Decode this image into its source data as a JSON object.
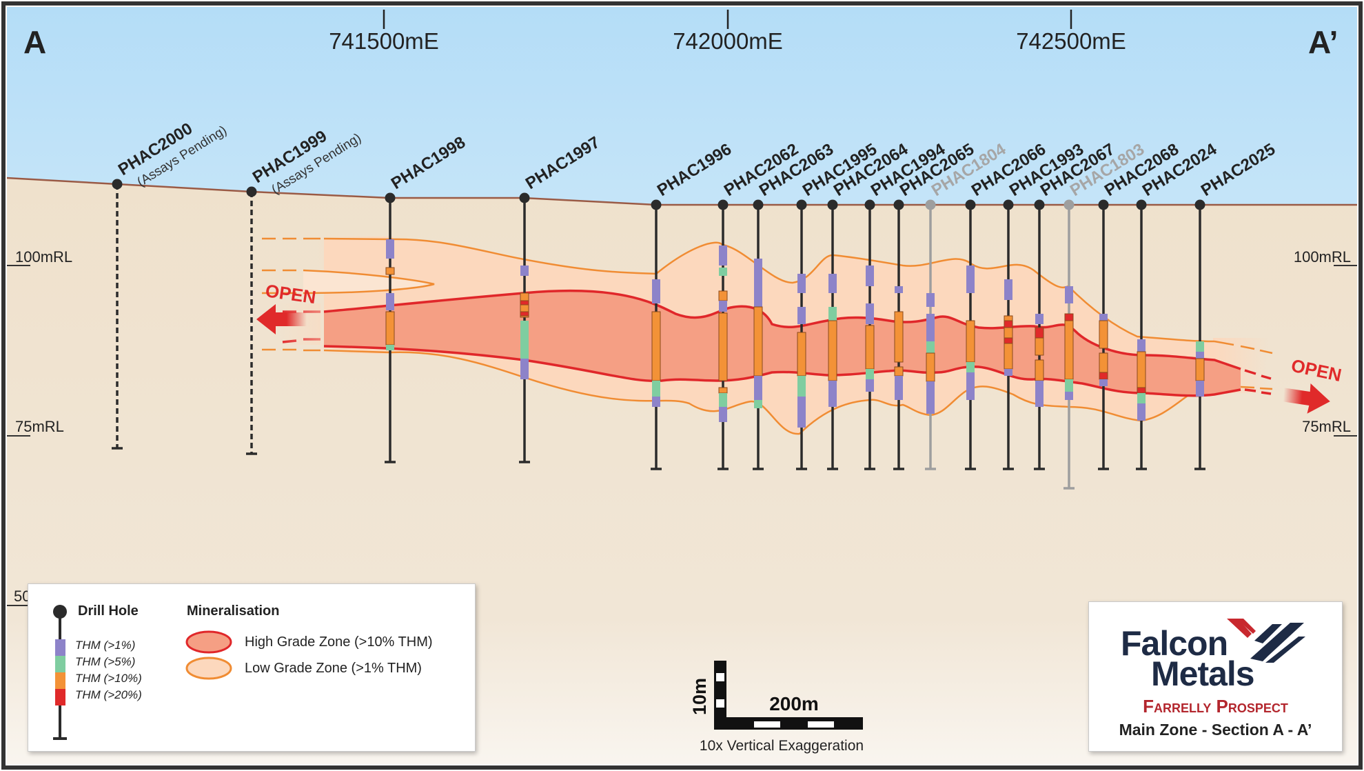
{
  "section": {
    "left_end": "A",
    "right_end": "A’",
    "eastings": [
      {
        "label": "741500mE",
        "value": 741500
      },
      {
        "label": "742000mE",
        "value": 742000
      },
      {
        "label": "742500mE",
        "value": 742500
      }
    ],
    "rl_labels": [
      {
        "label": "100mRL",
        "value": 100
      },
      {
        "label": "75mRL",
        "value": 75
      },
      {
        "label": "50",
        "value": 50
      }
    ],
    "open_left": "OPEN",
    "open_right": "OPEN"
  },
  "drill_holes": [
    {
      "name": "PHAC2000",
      "note": "(Assays Pending)",
      "status": "pending"
    },
    {
      "name": "PHAC1999",
      "note": "(Assays Pending)",
      "status": "pending"
    },
    {
      "name": "PHAC1998",
      "note": "",
      "status": "drilled"
    },
    {
      "name": "PHAC1997",
      "note": "",
      "status": "drilled"
    },
    {
      "name": "PHAC1996",
      "note": "",
      "status": "drilled"
    },
    {
      "name": "PHAC2062",
      "note": "",
      "status": "drilled"
    },
    {
      "name": "PHAC2063",
      "note": "",
      "status": "drilled"
    },
    {
      "name": "PHAC1995",
      "note": "",
      "status": "drilled"
    },
    {
      "name": "PHAC2064",
      "note": "",
      "status": "drilled"
    },
    {
      "name": "PHAC1994",
      "note": "",
      "status": "drilled"
    },
    {
      "name": "PHAC2065",
      "note": "",
      "status": "drilled"
    },
    {
      "name": "PHAC1804",
      "note": "",
      "status": "historic"
    },
    {
      "name": "PHAC2066",
      "note": "",
      "status": "drilled"
    },
    {
      "name": "PHAC1993",
      "note": "",
      "status": "drilled"
    },
    {
      "name": "PHAC2067",
      "note": "",
      "status": "drilled"
    },
    {
      "name": "PHAC1803",
      "note": "",
      "status": "historic"
    },
    {
      "name": "PHAC2068",
      "note": "",
      "status": "drilled"
    },
    {
      "name": "PHAC2024",
      "note": "",
      "status": "drilled"
    },
    {
      "name": "PHAC2025",
      "note": "",
      "status": "drilled"
    }
  ],
  "legend": {
    "drill_hole_title": "Drill Hole",
    "mineralisation_title": "Mineralisation",
    "thm_classes": [
      {
        "label": "THM (>1%)",
        "color": "#8d83c9"
      },
      {
        "label": "THM (>5%)",
        "color": "#7fcda0"
      },
      {
        "label": "THM (>10%)",
        "color": "#f39237"
      },
      {
        "label": "THM (>20%)",
        "color": "#e02a2a"
      }
    ],
    "zones": [
      {
        "label": "High Grade Zone (>10% THM)",
        "fill": "#f59f84",
        "stroke": "#e0272a"
      },
      {
        "label": "Low Grade Zone (>1% THM)",
        "fill": "#fcd8bd",
        "stroke": "#f08c33"
      }
    ]
  },
  "scale": {
    "vertical": "10m",
    "horizontal": "200m",
    "exaggeration": "10x Vertical Exaggeration"
  },
  "logo": {
    "line1": "Falcon",
    "line2": "Metals",
    "prospect": "Farrelly Prospect",
    "section_title": "Main Zone - Section A - A’"
  },
  "colors": {
    "sky_top": "#b4ddf7",
    "ground": "#efe2cf",
    "surface_line": "#9a5a45",
    "hole_line": "#2b2b2b",
    "historic_hole": "#9e9e9e",
    "open_arrow": "#e02a2a"
  }
}
